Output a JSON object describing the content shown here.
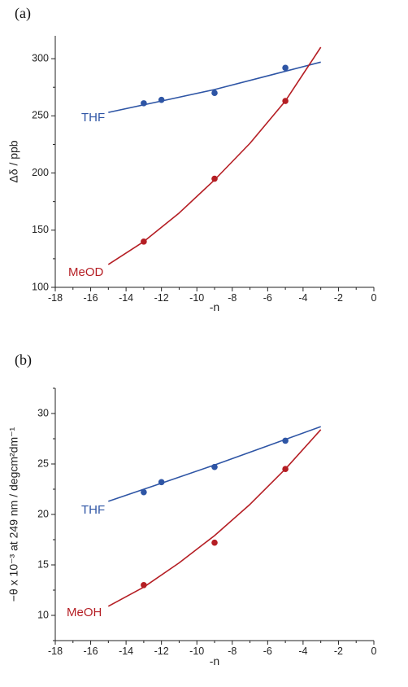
{
  "chart_data": [
    {
      "type": "scatter",
      "panel_label": "(a)",
      "xlabel": "-n",
      "ylabel": "Δδ / ppb",
      "xlim": [
        -18,
        0
      ],
      "ylim": [
        100,
        320
      ],
      "x_ticks": [
        "-18",
        "-16",
        "-14",
        "-12",
        "-10",
        "-8",
        "-6",
        "-4",
        "-2",
        "0"
      ],
      "y_ticks": [
        "100",
        "150",
        "200",
        "250",
        "300"
      ],
      "series": [
        {
          "name": "THF",
          "color": "#2e55a5",
          "points": [
            {
              "x": -13,
              "y": 261
            },
            {
              "x": -12,
              "y": 264
            },
            {
              "x": -9,
              "y": 270
            },
            {
              "x": -5,
              "y": 292
            }
          ],
          "fit": [
            {
              "x": -15,
              "y": 253
            },
            {
              "x": -12,
              "y": 263
            },
            {
              "x": -9,
              "y": 273
            },
            {
              "x": -6,
              "y": 285
            },
            {
              "x": -3,
              "y": 297
            }
          ]
        },
        {
          "name": "MeOD",
          "color": "#b51e24",
          "points": [
            {
              "x": -13,
              "y": 140
            },
            {
              "x": -9,
              "y": 195
            },
            {
              "x": -5,
              "y": 263
            }
          ],
          "fit": [
            {
              "x": -15,
              "y": 120
            },
            {
              "x": -13,
              "y": 140
            },
            {
              "x": -11,
              "y": 165
            },
            {
              "x": -9,
              "y": 194
            },
            {
              "x": -7,
              "y": 226
            },
            {
              "x": -5,
              "y": 263
            },
            {
              "x": -3,
              "y": 310
            }
          ]
        }
      ]
    },
    {
      "type": "scatter",
      "panel_label": "(b)",
      "xlabel": "-n",
      "ylabel": "−θ x 10⁻³ at 249 nm / degcm²dm⁻¹",
      "xlim": [
        -18,
        0
      ],
      "ylim": [
        7.5,
        32.5
      ],
      "x_ticks": [
        "-18",
        "-16",
        "-14",
        "-12",
        "-10",
        "-8",
        "-6",
        "-4",
        "-2",
        "0"
      ],
      "y_ticks": [
        "10",
        "15",
        "20",
        "25",
        "30"
      ],
      "series": [
        {
          "name": "THF",
          "color": "#2e55a5",
          "points": [
            {
              "x": -13,
              "y": 22.2
            },
            {
              "x": -12,
              "y": 23.2
            },
            {
              "x": -9,
              "y": 24.7
            },
            {
              "x": -5,
              "y": 27.3
            }
          ],
          "fit": [
            {
              "x": -15,
              "y": 21.3
            },
            {
              "x": -12,
              "y": 23.1
            },
            {
              "x": -9,
              "y": 24.9
            },
            {
              "x": -6,
              "y": 26.8
            },
            {
              "x": -3,
              "y": 28.7
            }
          ]
        },
        {
          "name": "MeOH",
          "color": "#b51e24",
          "points": [
            {
              "x": -13,
              "y": 13.0
            },
            {
              "x": -9,
              "y": 17.2
            },
            {
              "x": -5,
              "y": 24.5
            }
          ],
          "fit": [
            {
              "x": -15,
              "y": 10.9
            },
            {
              "x": -13,
              "y": 12.8
            },
            {
              "x": -11,
              "y": 15.2
            },
            {
              "x": -9,
              "y": 17.9
            },
            {
              "x": -7,
              "y": 21.0
            },
            {
              "x": -5,
              "y": 24.5
            },
            {
              "x": -3,
              "y": 28.4
            }
          ]
        }
      ]
    }
  ]
}
